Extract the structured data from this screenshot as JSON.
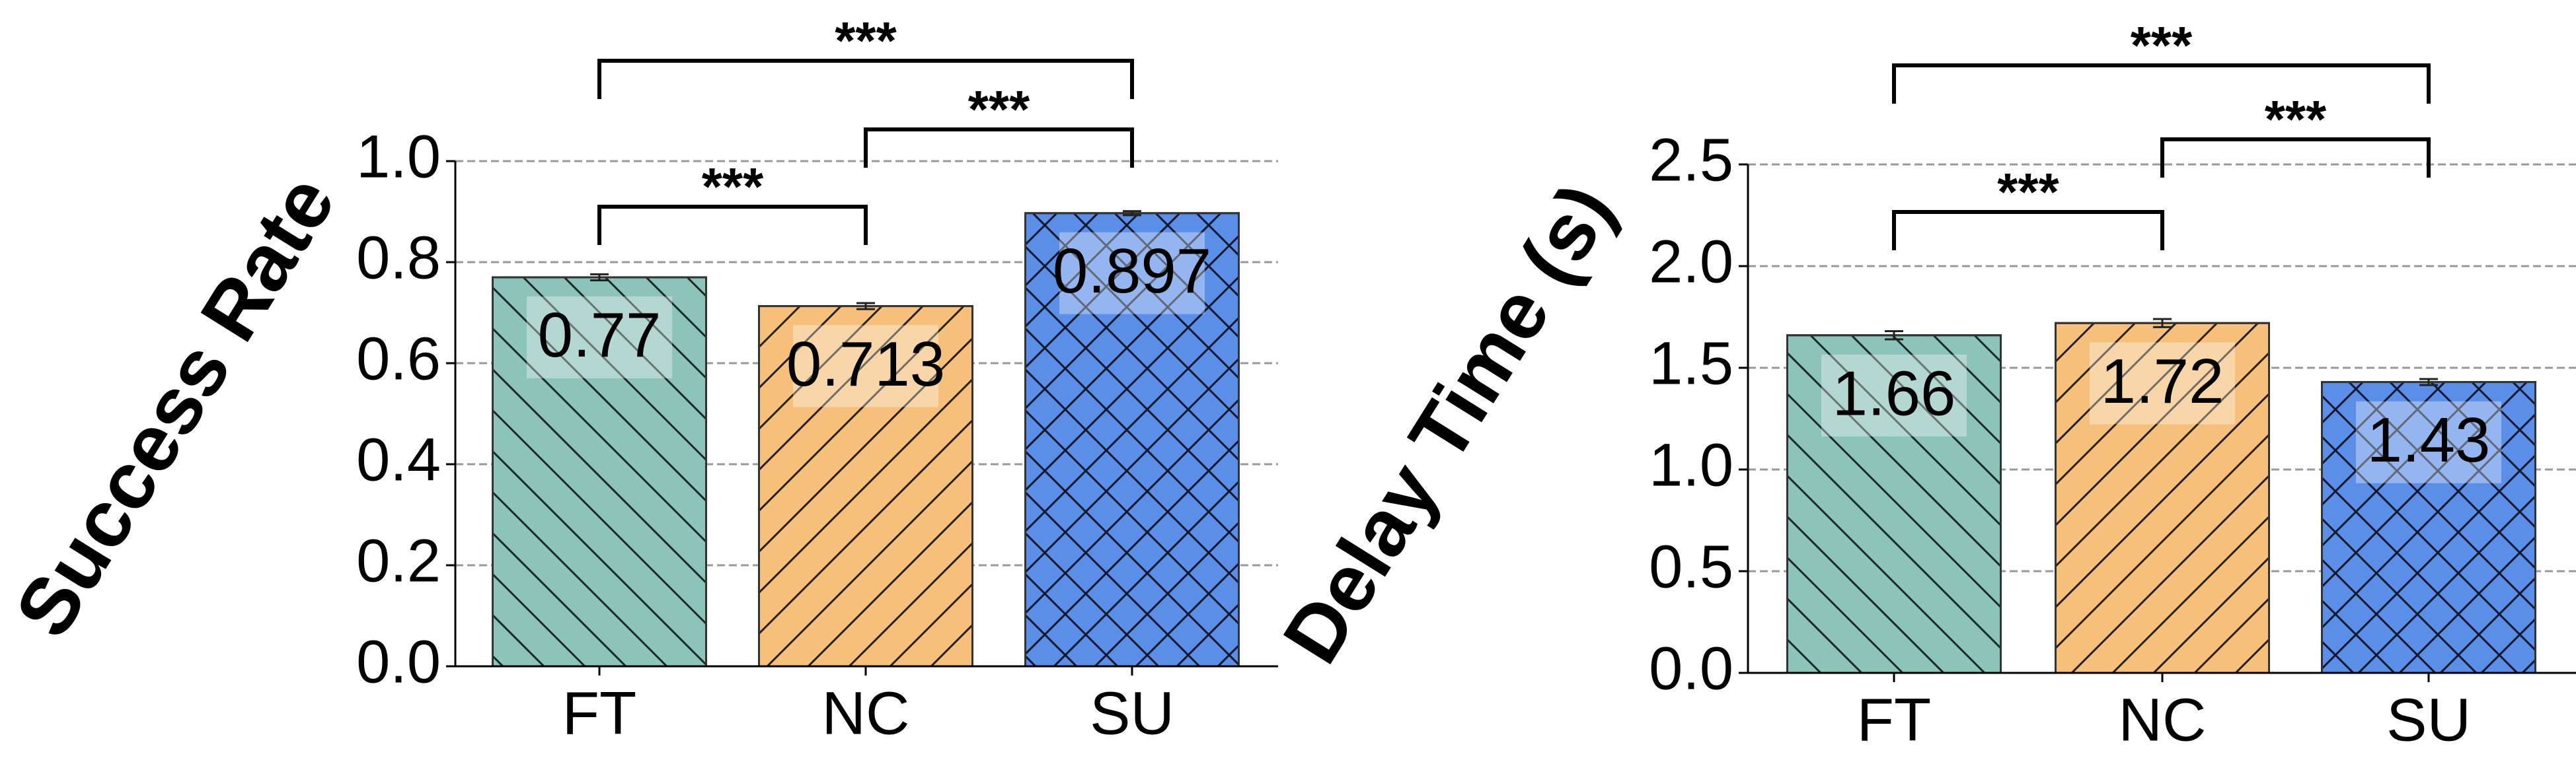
{
  "chart_data": [
    {
      "type": "bar",
      "ylabel": "Success Rate",
      "categories": [
        "FT",
        "NC",
        "SU"
      ],
      "values": [
        0.77,
        0.713,
        0.897
      ],
      "value_labels": [
        "0.77",
        "0.713",
        "0.897"
      ],
      "errors": [
        0.006,
        0.006,
        0.004
      ],
      "colors": [
        "#8cc4b9",
        "#f6c07c",
        "#5b8ee6"
      ],
      "hatches": [
        "back",
        "fwd",
        "cross"
      ],
      "ylim": [
        0,
        1.0
      ],
      "yticks": [
        {
          "value": 0,
          "label": "0.0"
        },
        0.2,
        0.4,
        0.6,
        0.8,
        {
          "value": 1,
          "label": "1.0"
        }
      ],
      "grid": true,
      "annotations": [
        {
          "text": "***",
          "between": [
            "FT",
            "NC"
          ]
        },
        {
          "text": "***",
          "between": [
            "NC",
            "SU"
          ]
        },
        {
          "text": "***",
          "between": [
            "FT",
            "SU"
          ]
        }
      ]
    },
    {
      "type": "bar",
      "ylabel": "Delay Time (s)",
      "categories": [
        "FT",
        "NC",
        "SU"
      ],
      "values": [
        1.66,
        1.72,
        1.43
      ],
      "value_labels": [
        "1.66",
        "1.72",
        "1.43"
      ],
      "errors": [
        0.02,
        0.02,
        0.015
      ],
      "colors": [
        "#8cc4b9",
        "#f6c07c",
        "#5b8ee6"
      ],
      "hatches": [
        "back",
        "fwd",
        "cross"
      ],
      "ylim": [
        0,
        2.5
      ],
      "yticks": [
        {
          "value": 0,
          "label": "0.0"
        },
        0.5,
        {
          "value": 1,
          "label": "1.0"
        },
        1.5,
        {
          "value": 2,
          "label": "2.0"
        },
        2.5
      ],
      "grid": true,
      "annotations": [
        {
          "text": "***",
          "between": [
            "FT",
            "NC"
          ]
        },
        {
          "text": "***",
          "between": [
            "NC",
            "SU"
          ]
        },
        {
          "text": "***",
          "between": [
            "FT",
            "SU"
          ]
        }
      ]
    }
  ]
}
